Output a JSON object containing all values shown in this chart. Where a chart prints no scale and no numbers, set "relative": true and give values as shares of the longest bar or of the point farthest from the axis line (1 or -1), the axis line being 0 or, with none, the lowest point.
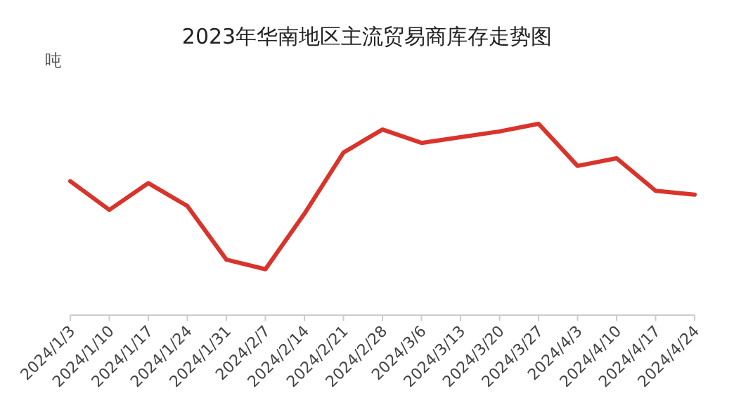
{
  "chart_data": {
    "type": "line",
    "title": "2023年华南地区主流贸易商库存走势图",
    "ylabel": "吨",
    "relative": true,
    "marker": "none",
    "line_style": "solid",
    "categories": [
      "2024/1/3",
      "2024/1/10",
      "2024/1/17",
      "2024/1/24",
      "2024/1/31",
      "2024/2/7",
      "2024/2/14",
      "2024/2/21",
      "2024/2/28",
      "2024/3/6",
      "2024/3/13",
      "2024/3/20",
      "2024/3/27",
      "2024/4/3",
      "2024/4/10",
      "2024/4/17",
      "2024/4/24"
    ],
    "series": [
      {
        "color": "#d9342b",
        "values": [
          0.7,
          0.55,
          0.69,
          0.57,
          0.29,
          0.24,
          0.53,
          0.85,
          0.97,
          0.9,
          0.93,
          0.96,
          1,
          0.78,
          0.82,
          0.65,
          0.63
        ]
      }
    ]
  }
}
